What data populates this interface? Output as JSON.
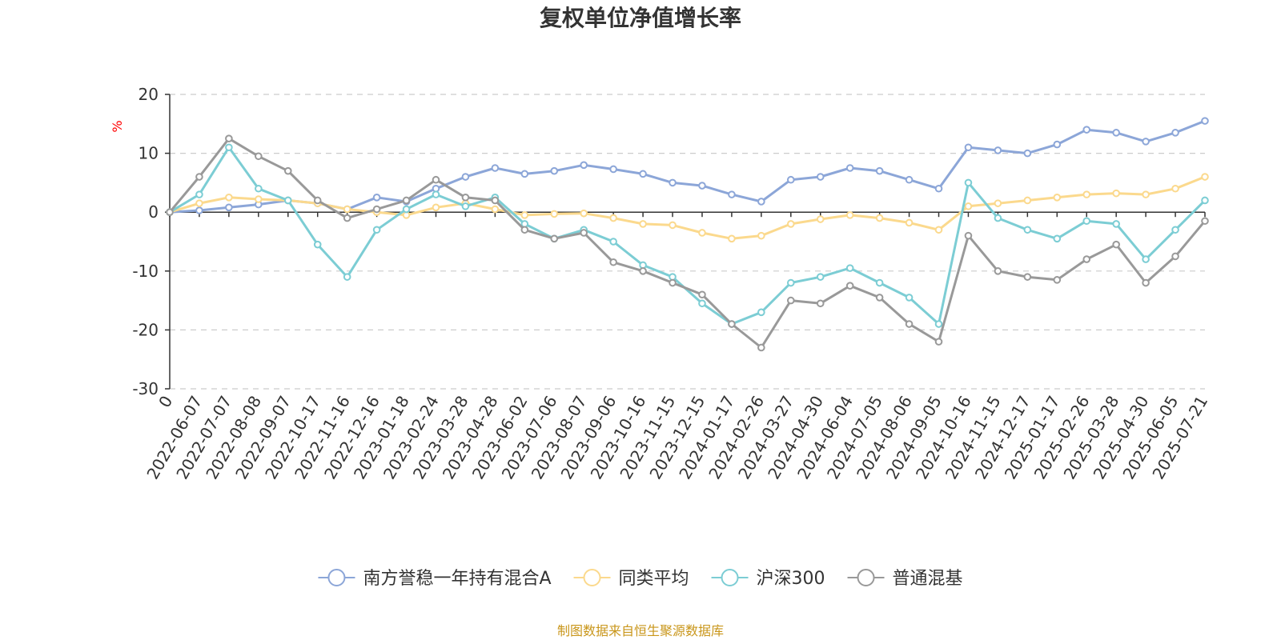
{
  "chart_data": {
    "type": "line",
    "title": "复权单位净值增长率",
    "y_unit": "%",
    "ylim": [
      -30,
      20
    ],
    "y_ticks": [
      20,
      10,
      0,
      -10,
      -20,
      -30
    ],
    "grid": true,
    "x_tick_labels": [
      "0",
      "2022-06-07",
      "2022-07-07",
      "2022-08-08",
      "2022-09-07",
      "2022-10-17",
      "2022-11-16",
      "2022-12-16",
      "2023-01-18",
      "2023-02-24",
      "2023-03-28",
      "2023-04-28",
      "2023-06-02",
      "2023-07-06",
      "2023-08-07",
      "2023-09-06",
      "2023-10-16",
      "2023-11-15",
      "2023-12-15",
      "2024-01-17",
      "2024-02-26",
      "2024-03-27",
      "2024-04-30",
      "2024-06-04",
      "2024-07-05",
      "2024-08-06",
      "2024-09-05",
      "2024-10-16",
      "2024-11-15",
      "2024-12-17",
      "2025-01-17",
      "2025-02-26",
      "2025-03-28",
      "2025-04-30",
      "2025-06-05",
      "2025-07-21"
    ],
    "legend_position": "bottom",
    "series": [
      {
        "name": "南方誉稳一年持有混合A",
        "color": "#8ca6d8",
        "values": [
          0,
          0.3,
          0.8,
          1.3,
          2.0,
          1.5,
          0.5,
          2.5,
          1.8,
          4.0,
          6.0,
          7.5,
          6.5,
          7.0,
          8.0,
          7.3,
          6.5,
          5.0,
          4.5,
          3.0,
          1.8,
          5.5,
          6.0,
          7.5,
          7.0,
          5.5,
          4.0,
          11.0,
          10.5,
          10.0,
          11.5,
          14.0,
          13.5,
          12.0,
          13.5,
          15.5
        ]
      },
      {
        "name": "同类平均",
        "color": "#fbd98d",
        "values": [
          0,
          1.5,
          2.5,
          2.2,
          2.0,
          1.5,
          0.5,
          0.0,
          -0.5,
          0.8,
          1.5,
          0.5,
          -0.5,
          -0.3,
          -0.2,
          -1.0,
          -2.0,
          -2.2,
          -3.5,
          -4.5,
          -4.0,
          -2.0,
          -1.2,
          -0.5,
          -1.0,
          -1.8,
          -3.0,
          1.0,
          1.5,
          2.0,
          2.5,
          3.0,
          3.2,
          3.0,
          4.0,
          6.0
        ]
      },
      {
        "name": "沪深300",
        "color": "#7ccdd4",
        "values": [
          0,
          3.0,
          11.0,
          4.0,
          2.0,
          -5.5,
          -11.0,
          -3.0,
          0.5,
          3.0,
          1.0,
          2.5,
          -2.0,
          -4.5,
          -3.0,
          -5.0,
          -9.0,
          -11.0,
          -15.5,
          -19.0,
          -17.0,
          -12.0,
          -11.0,
          -9.5,
          -12.0,
          -14.5,
          -19.0,
          5.0,
          -1.0,
          -3.0,
          -4.5,
          -1.5,
          -2.0,
          -8.0,
          -3.0,
          2.0
        ]
      },
      {
        "name": "普通混基",
        "color": "#999999",
        "values": [
          0,
          6.0,
          12.5,
          9.5,
          7.0,
          2.0,
          -1.0,
          0.5,
          2.0,
          5.5,
          2.5,
          2.0,
          -3.0,
          -4.5,
          -3.5,
          -8.5,
          -10.0,
          -12.0,
          -14.0,
          -19.0,
          -23.0,
          -15.0,
          -15.5,
          -12.5,
          -14.5,
          -19.0,
          -22.0,
          -4.0,
          -10.0,
          -11.0,
          -11.5,
          -8.0,
          -5.5,
          -12.0,
          -7.5,
          -1.5
        ]
      }
    ]
  },
  "source_note": "制图数据来自恒生聚源数据库"
}
